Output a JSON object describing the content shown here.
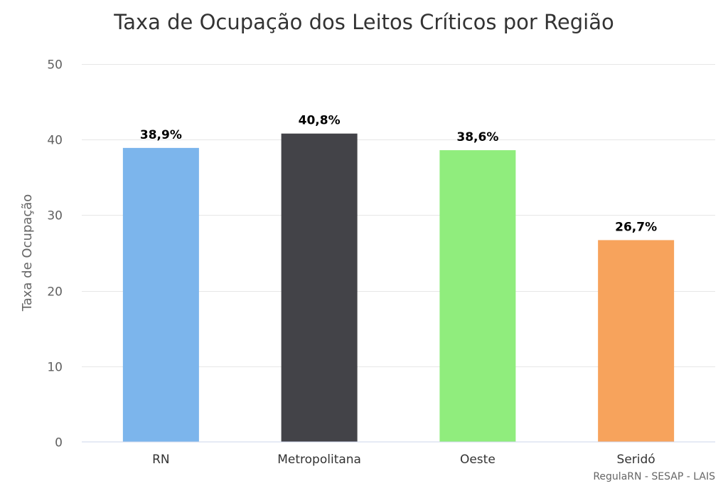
{
  "chart_data": {
    "type": "bar",
    "title": "Taxa de Ocupação dos Leitos Críticos por Região",
    "xlabel": "",
    "ylabel": "Taxa de Ocupação",
    "ylim": [
      0,
      50
    ],
    "yticks": [
      0,
      10,
      20,
      30,
      40,
      50
    ],
    "grid": true,
    "legend": "none",
    "categories": [
      "RN",
      "Metropolitana",
      "Oeste",
      "Seridó"
    ],
    "values": [
      38.9,
      40.8,
      38.6,
      26.7
    ],
    "data_labels": [
      "38,9%",
      "40,8%",
      "38,6%",
      "26,7%"
    ],
    "colors": [
      "#7cb5ec",
      "#434348",
      "#90ed7d",
      "#f7a35c"
    ]
  },
  "credit": "RegulaRN - SESAP - LAIS"
}
